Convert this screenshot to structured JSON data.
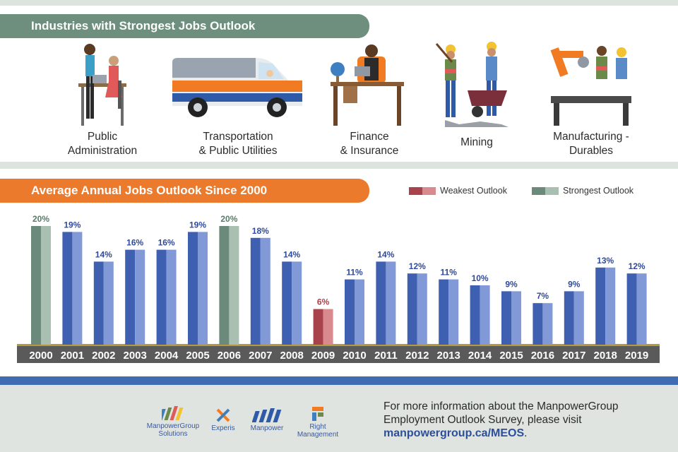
{
  "header": {
    "title": "Industries with Strongest Jobs Outlook"
  },
  "industries": [
    {
      "label": "Public\nAdministration",
      "icon": "office-workers-icon"
    },
    {
      "label": "Transportation\n& Public Utilities",
      "icon": "van-icon"
    },
    {
      "label": "Finance\n& Insurance",
      "icon": "businessman-desk-icon"
    },
    {
      "label": "Mining",
      "icon": "miners-icon"
    },
    {
      "label": "Manufacturing -\nDurables",
      "icon": "robot-arm-icon"
    }
  ],
  "chart_section": {
    "title": "Average Annual Jobs Outlook Since 2000",
    "legend": {
      "weakest": "Weakest Outlook",
      "strongest": "Strongest Outlook"
    }
  },
  "colors": {
    "blue_dark": "#3f5fb1",
    "blue_light": "#8199d6",
    "green_dark": "#6b8a7b",
    "green_light": "#a9bfb2",
    "red_dark": "#a8424d",
    "red_light": "#d88a8e",
    "axis_bar": "#5a5a5a",
    "gold_line": "#b39a3d"
  },
  "chart_data": {
    "type": "bar",
    "categories": [
      "2000",
      "2001",
      "2002",
      "2003",
      "2004",
      "2005",
      "2006",
      "2007",
      "2008",
      "2009",
      "2010",
      "2011",
      "2012",
      "2013",
      "2014",
      "2015",
      "2016",
      "2017",
      "2018",
      "2019"
    ],
    "values": [
      20,
      19,
      14,
      16,
      16,
      19,
      20,
      18,
      14,
      6,
      11,
      14,
      12,
      11,
      10,
      9,
      7,
      9,
      13,
      12
    ],
    "labels": [
      "20%",
      "19%",
      "14%",
      "16%",
      "16%",
      "19%",
      "20%",
      "18%",
      "14%",
      "6%",
      "11%",
      "14%",
      "12%",
      "11%",
      "10%",
      "9%",
      "7%",
      "9%",
      "13%",
      "12%"
    ],
    "highlight": {
      "strongest": [
        "2000",
        "2006"
      ],
      "weakest": [
        "2009"
      ]
    },
    "title": "Average Annual Jobs Outlook Since 2000",
    "ylim": [
      0,
      20
    ]
  },
  "footer": {
    "logos": [
      {
        "name": "ManpowerGroup\nSolutions"
      },
      {
        "name": "Experis"
      },
      {
        "name": "Manpower"
      },
      {
        "name": "Right\nManagement"
      }
    ],
    "info_line1": "For more information about the ManpowerGroup",
    "info_line2": "Employment Outlook Survey, please visit",
    "url": "manpowergroup.ca/MEOS",
    "url_suffix": "."
  }
}
